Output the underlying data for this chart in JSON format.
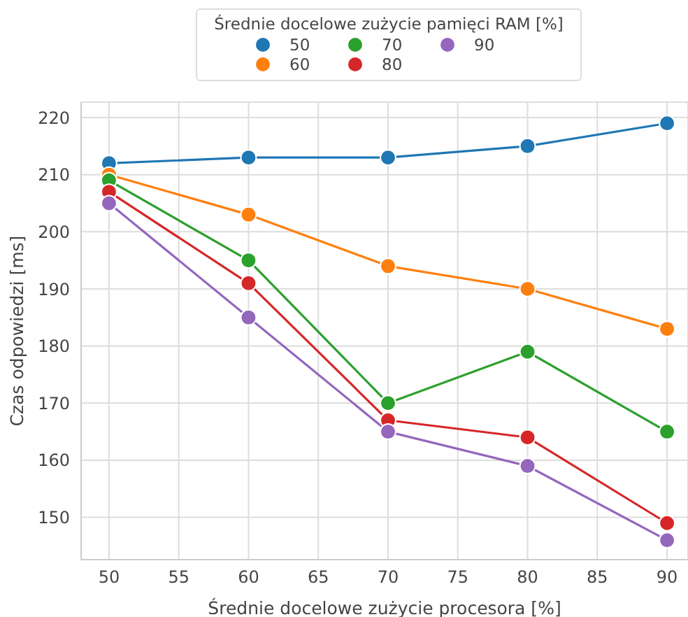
{
  "chart_data": {
    "type": "line",
    "xlabel": "Średnie docelowe zużycie procesora [%]",
    "ylabel": "Czas odpowiedzi [ms]",
    "legend_title": "Średnie docelowe zużycie pamięci RAM [%]",
    "legend": "top",
    "grid": true,
    "marker": "circle",
    "line_style": "solid",
    "x": [
      50,
      60,
      70,
      80,
      90
    ],
    "xlim": [
      48,
      91.5
    ],
    "xticks": [
      50,
      55,
      60,
      65,
      70,
      75,
      80,
      85,
      90
    ],
    "ylim": [
      142.6,
      222.7
    ],
    "yticks": [
      150,
      160,
      170,
      180,
      190,
      200,
      210,
      220
    ],
    "series": [
      {
        "name": "50",
        "color": "#1f77b4",
        "values": [
          212,
          213,
          213,
          215,
          219
        ]
      },
      {
        "name": "60",
        "color": "#ff7f0e",
        "values": [
          210,
          203,
          194,
          190,
          183
        ]
      },
      {
        "name": "70",
        "color": "#2ca02c",
        "values": [
          209,
          195,
          170,
          179,
          165
        ]
      },
      {
        "name": "80",
        "color": "#d62728",
        "values": [
          207,
          191,
          167,
          164,
          149
        ]
      },
      {
        "name": "90",
        "color": "#9467bd",
        "values": [
          205,
          185,
          165,
          159,
          146
        ]
      }
    ]
  }
}
